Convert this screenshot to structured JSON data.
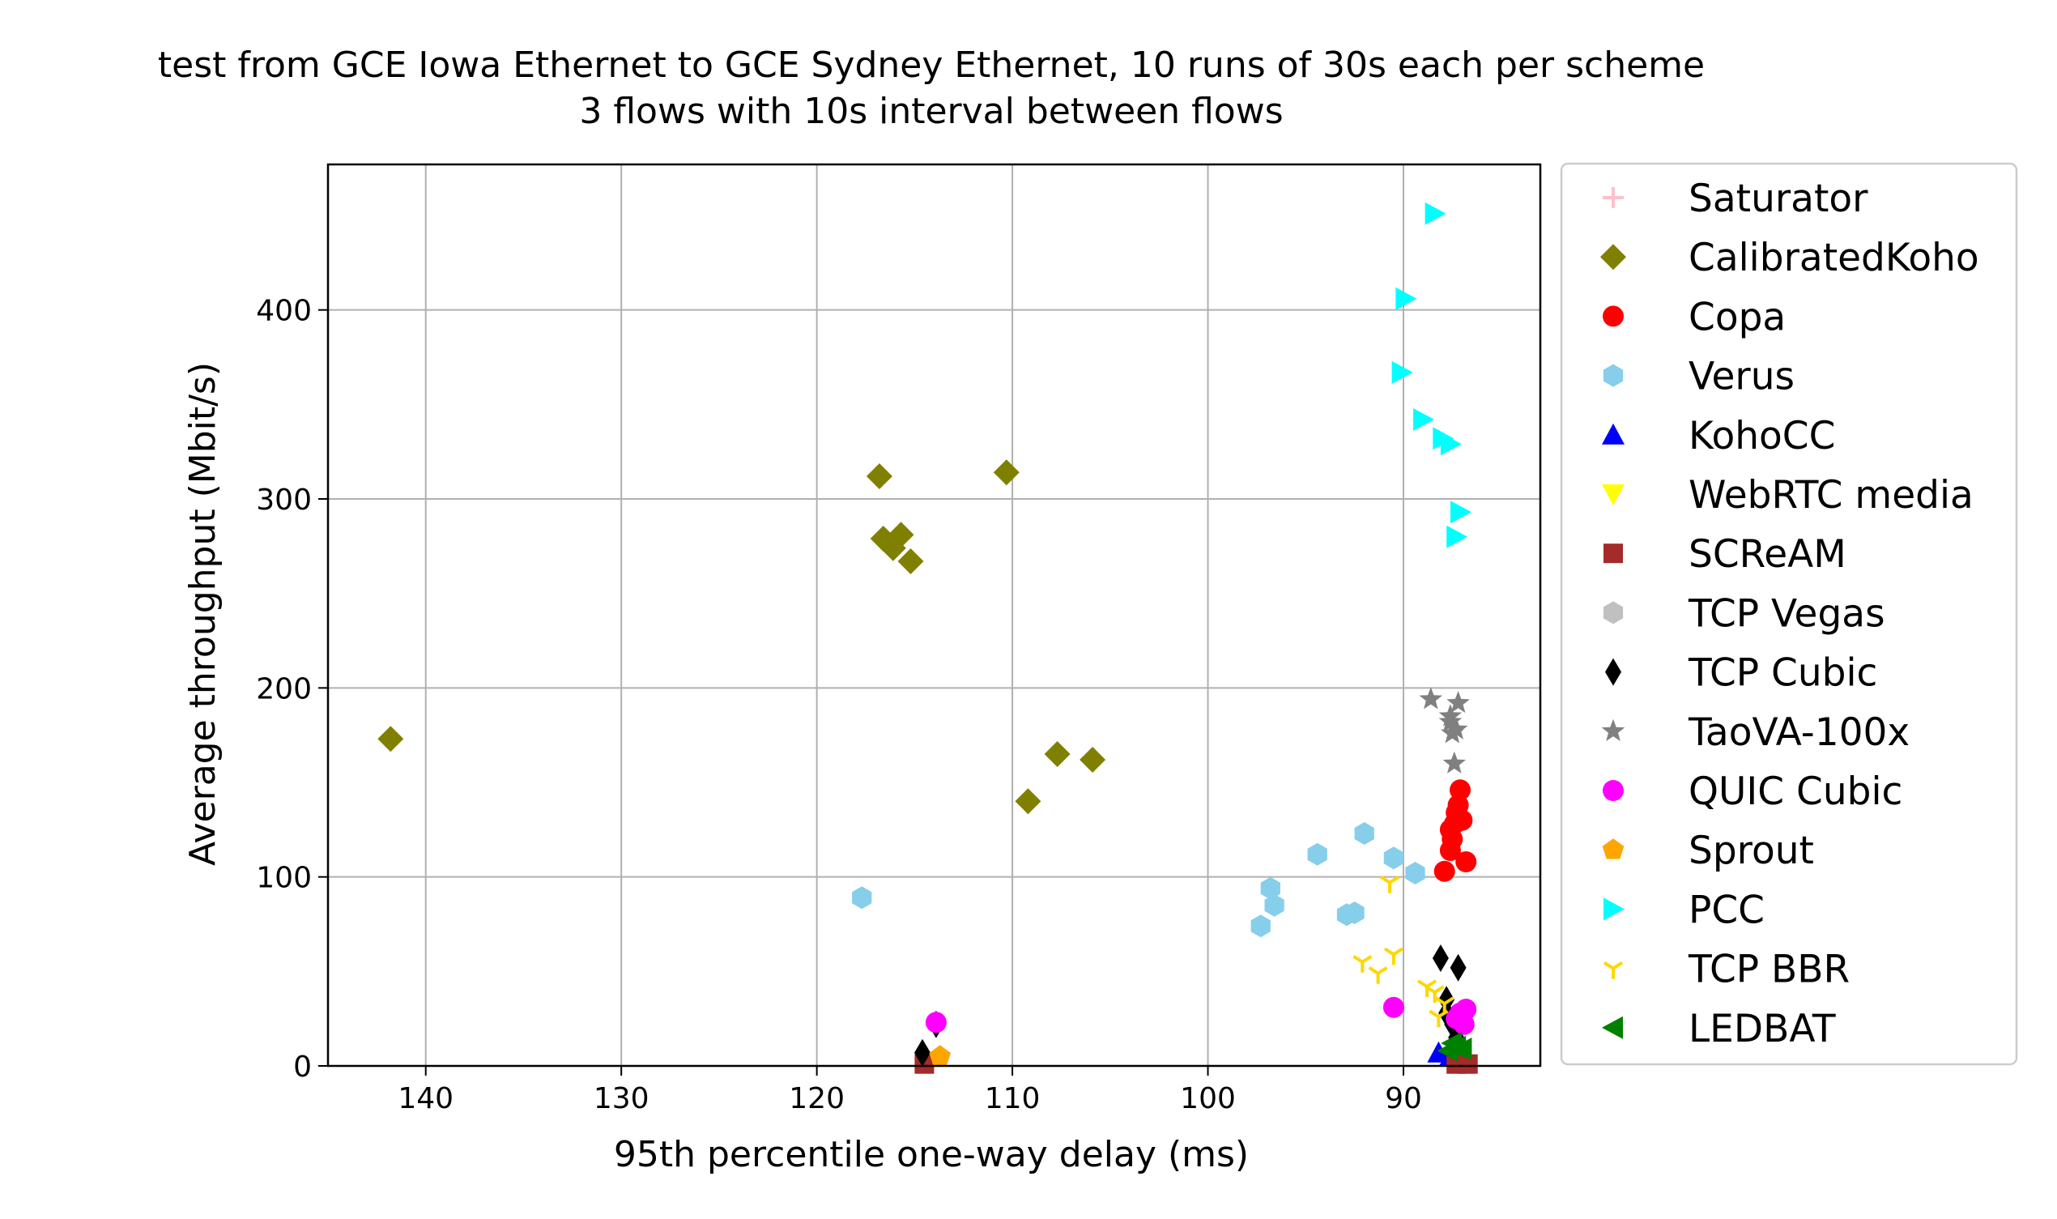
{
  "chart_data": {
    "type": "scatter",
    "title": "test from GCE Iowa Ethernet to GCE Sydney Ethernet, 10 runs of 30s each per scheme",
    "subtitle": "3 flows with 10s interval between flows",
    "xlabel": "95th percentile one-way delay (ms)",
    "ylabel": "Average throughput (Mbit/s)",
    "x_inverted": true,
    "xlim": [
      145,
      83
    ],
    "ylim": [
      0,
      477
    ],
    "xticks": [
      140,
      130,
      120,
      110,
      100,
      90
    ],
    "yticks": [
      0,
      100,
      200,
      300,
      400
    ],
    "grid": true,
    "legend_position": "outside-right",
    "series": [
      {
        "name": "Saturator",
        "marker": "plus",
        "color": "#ffc0cb",
        "points": []
      },
      {
        "name": "CalibratedKoho",
        "marker": "diamond",
        "color": "#808000",
        "points": [
          [
            141.8,
            173
          ],
          [
            116.8,
            312
          ],
          [
            110.3,
            314
          ],
          [
            116.6,
            279
          ],
          [
            116.1,
            274
          ],
          [
            115.7,
            281
          ],
          [
            115.2,
            267
          ],
          [
            107.7,
            165
          ],
          [
            105.9,
            162
          ],
          [
            109.2,
            140
          ]
        ]
      },
      {
        "name": "Copa",
        "marker": "circle",
        "color": "#ff0000",
        "points": [
          [
            87.1,
            146
          ],
          [
            87.2,
            138
          ],
          [
            87.4,
            128
          ],
          [
            87.5,
            120
          ],
          [
            87.6,
            114
          ],
          [
            87.3,
            134
          ],
          [
            87.0,
            130
          ],
          [
            87.6,
            125
          ],
          [
            86.8,
            108
          ],
          [
            87.9,
            103
          ]
        ]
      },
      {
        "name": "Verus",
        "marker": "hexagon",
        "color": "#87ceeb",
        "points": [
          [
            117.7,
            89
          ],
          [
            96.8,
            94
          ],
          [
            96.6,
            85
          ],
          [
            97.3,
            74
          ],
          [
            94.4,
            112
          ],
          [
            92.0,
            123
          ],
          [
            90.5,
            110
          ],
          [
            89.4,
            102
          ],
          [
            92.9,
            80
          ],
          [
            92.5,
            81
          ]
        ]
      },
      {
        "name": "KohoCC",
        "marker": "triangle-up",
        "color": "#0000ff",
        "points": [
          [
            88.2,
            7
          ],
          [
            87.6,
            5
          ]
        ]
      },
      {
        "name": "WebRTC media",
        "marker": "triangle-down",
        "color": "#ffff00",
        "points": []
      },
      {
        "name": "SCReAM",
        "marker": "square",
        "color": "#a52a2a",
        "points": [
          [
            114.5,
            1
          ],
          [
            86.7,
            1
          ],
          [
            87.3,
            1
          ]
        ]
      },
      {
        "name": "TCP Vegas",
        "marker": "hexagon",
        "color": "#c0c0c0",
        "points": []
      },
      {
        "name": "TCP Cubic",
        "marker": "thin-diamond",
        "color": "#000000",
        "points": [
          [
            114.6,
            7
          ],
          [
            113.9,
            22
          ],
          [
            88.1,
            57
          ],
          [
            87.2,
            52
          ],
          [
            87.8,
            35
          ],
          [
            87.5,
            22
          ],
          [
            87.3,
            15
          ],
          [
            87.8,
            28
          ]
        ]
      },
      {
        "name": "TaoVA-100x",
        "marker": "star",
        "color": "#808080",
        "points": [
          [
            88.6,
            194
          ],
          [
            87.2,
            192
          ],
          [
            87.6,
            182
          ],
          [
            87.3,
            178
          ],
          [
            87.5,
            176
          ],
          [
            87.4,
            160
          ],
          [
            87.6,
            185
          ]
        ]
      },
      {
        "name": "QUIC Cubic",
        "marker": "circle",
        "color": "#ff00ff",
        "points": [
          [
            113.9,
            23
          ],
          [
            90.5,
            31
          ],
          [
            87.1,
            28
          ],
          [
            86.9,
            22
          ],
          [
            87.3,
            25
          ],
          [
            86.8,
            30
          ]
        ]
      },
      {
        "name": "Sprout",
        "marker": "pentagon",
        "color": "#ffa500",
        "points": [
          [
            113.7,
            5
          ]
        ]
      },
      {
        "name": "PCC",
        "marker": "triangle-right",
        "color": "#00ffff",
        "points": [
          [
            88.4,
            451
          ],
          [
            89.9,
            406
          ],
          [
            90.1,
            367
          ],
          [
            89.0,
            342
          ],
          [
            88.0,
            332
          ],
          [
            87.6,
            329
          ],
          [
            87.1,
            293
          ],
          [
            87.3,
            280
          ]
        ]
      },
      {
        "name": "TCP BBR",
        "marker": "tri-down",
        "color": "#ffd700",
        "points": [
          [
            90.7,
            97
          ],
          [
            90.5,
            59
          ],
          [
            92.1,
            55
          ],
          [
            91.3,
            49
          ],
          [
            88.8,
            42
          ],
          [
            88.4,
            39
          ],
          [
            87.9,
            33
          ],
          [
            88.2,
            26
          ]
        ]
      },
      {
        "name": "LEDBAT",
        "marker": "triangle-left",
        "color": "#008000",
        "points": [
          [
            87.7,
            8
          ],
          [
            87.3,
            10
          ],
          [
            87.0,
            9
          ],
          [
            87.5,
            12
          ]
        ]
      }
    ]
  }
}
